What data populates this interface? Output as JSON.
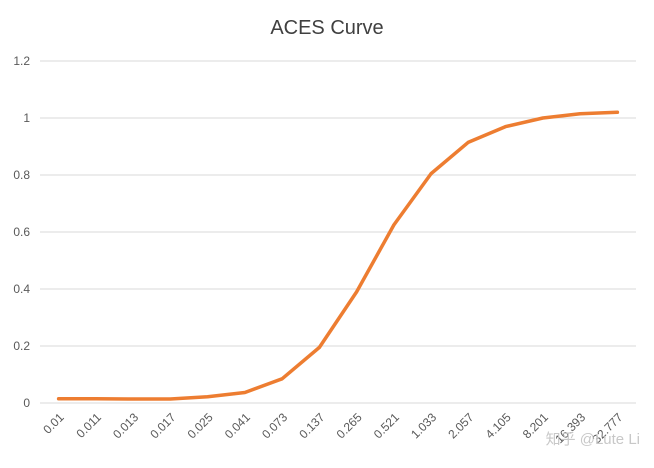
{
  "chart_data": {
    "type": "line",
    "title": "ACES Curve",
    "xlabel": "",
    "ylabel": "",
    "categories": [
      "0.01",
      "0.011",
      "0.013",
      "0.017",
      "0.025",
      "0.041",
      "0.073",
      "0.137",
      "0.265",
      "0.521",
      "1.033",
      "2.057",
      "4.105",
      "8.201",
      "16.393",
      "32.777"
    ],
    "series": [
      {
        "values": [
          0.015,
          0.015,
          0.014,
          0.014,
          0.022,
          0.037,
          0.085,
          0.195,
          0.39,
          0.625,
          0.805,
          0.915,
          0.97,
          1.0,
          1.015,
          1.02
        ]
      }
    ],
    "ylim": [
      0,
      1.2
    ],
    "yticks": [
      0,
      0.2,
      0.4,
      0.6,
      0.8,
      1,
      1.2
    ],
    "ytick_labels": [
      "0",
      "0.2",
      "0.4",
      "0.6",
      "0.8",
      "1",
      "1.2"
    ],
    "grid": true,
    "legend": "none",
    "colors": {
      "line": "#ED7D31",
      "grid": "#D9D9D9",
      "text": "#595959",
      "title": "#404040"
    }
  },
  "watermark": "知乎 @Lute Li"
}
